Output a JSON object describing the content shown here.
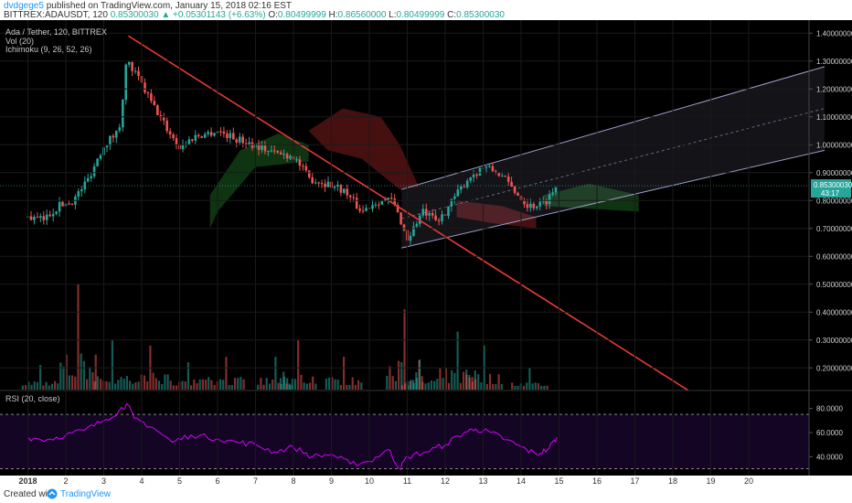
{
  "header": {
    "user": "dvdgege5",
    "published_text": "published on TradingView.com, January 15, 2018 02:16 EST",
    "symbol_line": "BITTREX:ADAUSDT, 120",
    "last": "0.85300030",
    "change": "+0.05301143 (+6.63%)",
    "o_label": "O:",
    "o_value": "0.80499999",
    "h_label": "H:",
    "h_value": "0.86560000",
    "l_label": "L:",
    "l_value": "0.80499999",
    "c_label": "C:",
    "c_value": "0.85300030"
  },
  "overlay": {
    "title": "Ada / Tether, 120, BITTREX",
    "volume": "Vol (20)",
    "ichimoku": "Ichimoku (9, 26, 52, 26)",
    "rsi": "RSI (20, close)"
  },
  "colors": {
    "background": "#000000",
    "up": "#26a69a",
    "down": "#ef5350",
    "trendline": "#e53935",
    "rsi": "#d500f9",
    "channel": "#9e9ec8",
    "cloud_green": "#1b5e20",
    "cloud_red": "#7f1d1d"
  },
  "chart_data": [
    {
      "type": "candlestick",
      "title": "Ada / Tether, 120, BITTREX",
      "x_ticks": [
        "2018",
        "2",
        "3",
        "4",
        "5",
        "6",
        "7",
        "8",
        "9",
        "10",
        "11",
        "12",
        "13",
        "14",
        "15",
        "16",
        "17",
        "18",
        "19",
        "20"
      ],
      "y_ticks": [
        "1.40000000",
        "1.30000000",
        "1.20000000",
        "1.10000000",
        "1.00000000",
        "0.90000000",
        "0.80000000",
        "0.70000000",
        "0.60000000",
        "0.50000000",
        "0.40000000",
        "0.30000000",
        "0.20000000"
      ],
      "ylim": [
        0.12,
        1.45
      ],
      "last_price_label": "0.85300030",
      "countdown_label": "43:17",
      "last_price": 0.853,
      "close_path": [
        {
          "day": 1.0,
          "price": 0.74
        },
        {
          "day": 1.4,
          "price": 0.73
        },
        {
          "day": 1.8,
          "price": 0.78
        },
        {
          "day": 2.2,
          "price": 0.8
        },
        {
          "day": 2.6,
          "price": 0.88
        },
        {
          "day": 3.0,
          "price": 1.0
        },
        {
          "day": 3.4,
          "price": 1.05
        },
        {
          "day": 3.6,
          "price": 1.3
        },
        {
          "day": 3.9,
          "price": 1.24
        },
        {
          "day": 4.3,
          "price": 1.14
        },
        {
          "day": 4.7,
          "price": 1.05
        },
        {
          "day": 5.0,
          "price": 0.99
        },
        {
          "day": 5.4,
          "price": 1.03
        },
        {
          "day": 6.0,
          "price": 1.05
        },
        {
          "day": 6.5,
          "price": 1.02
        },
        {
          "day": 7.0,
          "price": 1.0
        },
        {
          "day": 7.5,
          "price": 0.97
        },
        {
          "day": 8.0,
          "price": 0.96
        },
        {
          "day": 8.4,
          "price": 0.88
        },
        {
          "day": 8.9,
          "price": 0.86
        },
        {
          "day": 9.3,
          "price": 0.84
        },
        {
          "day": 9.8,
          "price": 0.76
        },
        {
          "day": 10.2,
          "price": 0.8
        },
        {
          "day": 10.6,
          "price": 0.8
        },
        {
          "day": 10.85,
          "price": 0.72
        },
        {
          "day": 11.0,
          "price": 0.66
        },
        {
          "day": 11.4,
          "price": 0.76
        },
        {
          "day": 11.8,
          "price": 0.72
        },
        {
          "day": 12.2,
          "price": 0.8
        },
        {
          "day": 12.6,
          "price": 0.88
        },
        {
          "day": 13.0,
          "price": 0.92
        },
        {
          "day": 13.4,
          "price": 0.9
        },
        {
          "day": 13.8,
          "price": 0.84
        },
        {
          "day": 14.2,
          "price": 0.78
        },
        {
          "day": 14.6,
          "price": 0.79
        },
        {
          "day": 14.95,
          "price": 0.853
        }
      ],
      "trendline": [
        {
          "day": 3.65,
          "price": 1.39
        },
        {
          "day": 18.4,
          "price": 0.12
        }
      ],
      "channel": {
        "lower": [
          {
            "day": 10.85,
            "price": 0.63
          },
          {
            "day": 22.0,
            "price": 0.98
          }
        ],
        "upper": [
          {
            "day": 10.85,
            "price": 0.84
          },
          {
            "day": 22.0,
            "price": 1.28
          }
        ]
      },
      "volume": [
        {
          "day": 1.3,
          "value": 0.21
        },
        {
          "day": 2.3,
          "value": 0.5
        },
        {
          "day": 3.2,
          "value": 0.3
        },
        {
          "day": 4.2,
          "value": 0.28
        },
        {
          "day": 5.2,
          "value": 0.22
        },
        {
          "day": 6.2,
          "value": 0.24
        },
        {
          "day": 7.5,
          "value": 0.24
        },
        {
          "day": 8.1,
          "value": 0.3
        },
        {
          "day": 9.3,
          "value": 0.24
        },
        {
          "day": 10.9,
          "value": 0.41
        },
        {
          "day": 11.3,
          "value": 0.23
        },
        {
          "day": 12.3,
          "value": 0.33
        },
        {
          "day": 13.0,
          "value": 0.28
        },
        {
          "day": 14.2,
          "value": 0.2
        }
      ]
    },
    {
      "type": "line",
      "title": "RSI (20, close)",
      "y_ticks": [
        "80.0000",
        "60.0000",
        "40.0000"
      ],
      "ylim": [
        25,
        88
      ],
      "upper_band": 75,
      "lower_band": 30,
      "rsi": [
        {
          "day": 1.0,
          "value": 56
        },
        {
          "day": 1.5,
          "value": 54
        },
        {
          "day": 2.0,
          "value": 58
        },
        {
          "day": 2.5,
          "value": 62
        },
        {
          "day": 3.0,
          "value": 70
        },
        {
          "day": 3.4,
          "value": 78
        },
        {
          "day": 3.6,
          "value": 84
        },
        {
          "day": 3.8,
          "value": 72
        },
        {
          "day": 4.3,
          "value": 64
        },
        {
          "day": 4.8,
          "value": 52
        },
        {
          "day": 5.3,
          "value": 58
        },
        {
          "day": 6.0,
          "value": 55
        },
        {
          "day": 6.5,
          "value": 52
        },
        {
          "day": 7.0,
          "value": 50
        },
        {
          "day": 7.5,
          "value": 44
        },
        {
          "day": 8.0,
          "value": 48
        },
        {
          "day": 8.5,
          "value": 40
        },
        {
          "day": 9.0,
          "value": 42
        },
        {
          "day": 9.5,
          "value": 34
        },
        {
          "day": 10.0,
          "value": 36
        },
        {
          "day": 10.5,
          "value": 46
        },
        {
          "day": 10.8,
          "value": 30
        },
        {
          "day": 11.0,
          "value": 40
        },
        {
          "day": 11.5,
          "value": 44
        },
        {
          "day": 12.0,
          "value": 50
        },
        {
          "day": 12.5,
          "value": 60
        },
        {
          "day": 12.8,
          "value": 63
        },
        {
          "day": 13.2,
          "value": 60
        },
        {
          "day": 13.6,
          "value": 54
        },
        {
          "day": 14.0,
          "value": 48
        },
        {
          "day": 14.4,
          "value": 42
        },
        {
          "day": 14.7,
          "value": 46
        },
        {
          "day": 14.95,
          "value": 56
        }
      ]
    }
  ]
}
